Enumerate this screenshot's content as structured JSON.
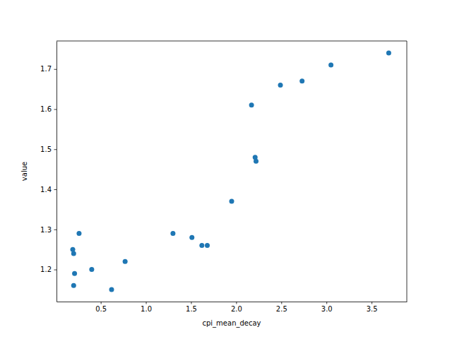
{
  "chart_data": {
    "type": "scatter",
    "x_label": "cpi_mean_decay",
    "y_label": "value",
    "x": [
      0.19,
      0.2,
      0.26,
      0.21,
      0.2,
      0.4,
      0.62,
      0.77,
      1.3,
      1.51,
      1.62,
      1.68,
      1.95,
      2.17,
      2.21,
      2.22,
      2.49,
      2.73,
      3.05,
      3.69
    ],
    "values": [
      1.25,
      1.24,
      1.29,
      1.19,
      1.16,
      1.2,
      1.15,
      1.22,
      1.29,
      1.28,
      1.26,
      1.26,
      1.37,
      1.61,
      1.48,
      1.47,
      1.66,
      1.67,
      1.71,
      1.74
    ],
    "color": "#1f77b4",
    "marker": "circle",
    "xlim": [
      0.01,
      3.89
    ],
    "xticks": [
      0.5,
      {
        "value": 1,
        "label": "1.0"
      },
      1.5,
      {
        "value": 2,
        "label": "2.0"
      },
      2.5,
      {
        "value": 3,
        "label": "3.0"
      },
      3.5
    ],
    "ylim": [
      1.12,
      1.77
    ],
    "yticks": [
      1.2,
      1.3,
      1.4,
      1.5,
      1.6,
      1.7
    ],
    "grid": false
  }
}
